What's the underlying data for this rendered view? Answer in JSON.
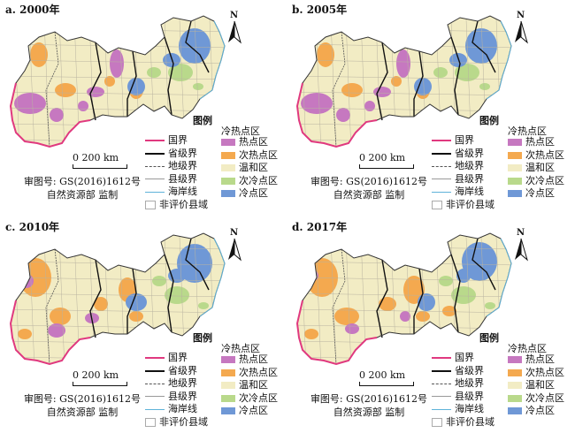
{
  "panels": [
    {
      "label": "a. 2000年",
      "variant": 0
    },
    {
      "label": "b. 2005年",
      "variant": 1
    },
    {
      "label": "c. 2010年",
      "variant": 2
    },
    {
      "label": "d. 2017年",
      "variant": 3
    }
  ],
  "north_label": "N",
  "scale_label": "0  200 km",
  "credit_line1": "审图号: GS(2016)1612号",
  "credit_line2": "自然资源部 监制",
  "legend": {
    "title": "图例",
    "class_title": "冷热点区",
    "boundaries": [
      {
        "label": "国界",
        "color": "#e0397f",
        "style": "solid",
        "width": 2
      },
      {
        "label": "省级界",
        "color": "#111111",
        "style": "solid",
        "width": 2
      },
      {
        "label": "地级界",
        "color": "#555555",
        "style": "dashed",
        "width": 1
      },
      {
        "label": "县级界",
        "color": "#999999",
        "style": "solid",
        "width": 1
      },
      {
        "label": "海岸线",
        "color": "#5fb3d9",
        "style": "solid",
        "width": 1
      },
      {
        "label": "非评价县域",
        "color": "#ffffff",
        "style": "box",
        "width": 1
      }
    ],
    "classes": [
      {
        "label": "热点区",
        "color": "#c678c0"
      },
      {
        "label": "次热点区",
        "color": "#f4a94f"
      },
      {
        "label": "温和区",
        "color": "#f2ecc4"
      },
      {
        "label": "次冷点区",
        "color": "#b9d98b"
      },
      {
        "label": "冷点区",
        "color": "#6f98d6"
      }
    ]
  }
}
